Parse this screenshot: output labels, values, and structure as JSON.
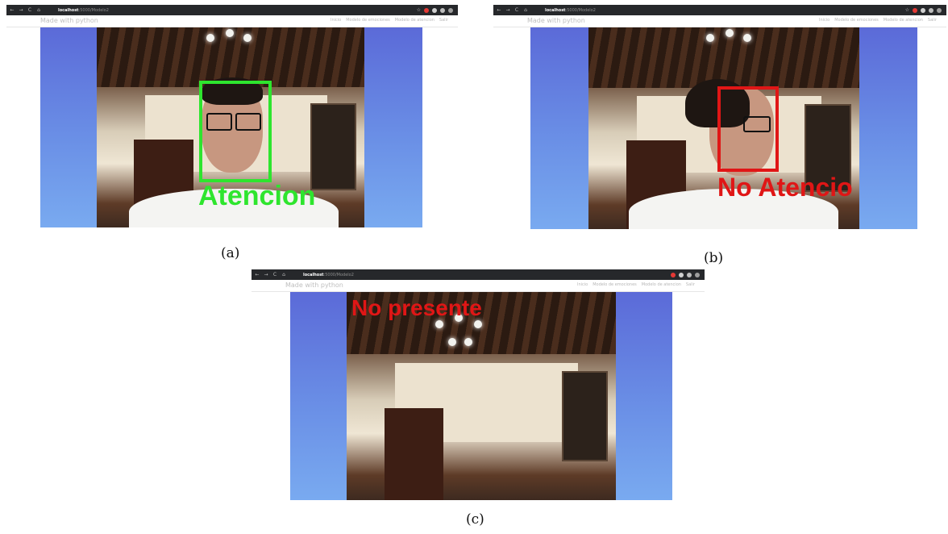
{
  "browser": {
    "nav_back": "←",
    "nav_forward": "→",
    "nav_reload": "C",
    "nav_home": "⌂",
    "url_host": "localhost",
    "url_path": ":5000/Modelo2"
  },
  "site": {
    "brand": "Made with python",
    "menu": [
      "Inicio",
      "Modelo de emociones",
      "Modelo de atencion",
      "Salir"
    ]
  },
  "panels": [
    {
      "id": "a",
      "label": "Atencion",
      "label_color": "#2ee52e",
      "caption": "(a)"
    },
    {
      "id": "b",
      "label": "No Atencio",
      "label_color": "#e01616",
      "caption": "(b)"
    },
    {
      "id": "c",
      "label": "No presente",
      "label_color": "#e01616",
      "caption": "(c)"
    }
  ],
  "colors": {
    "stage_gradient_top": "#5b6ad8",
    "stage_gradient_bottom": "#79aaf0",
    "browser_bar": "#26282b"
  },
  "icons": [
    "arrow-left-icon",
    "arrow-right-icon",
    "reload-icon",
    "home-icon",
    "star-icon",
    "extension-icon"
  ]
}
